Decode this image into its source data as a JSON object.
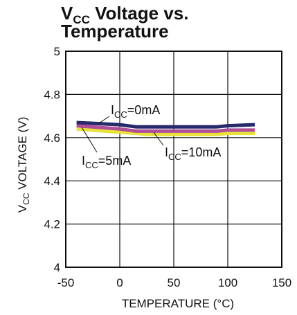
{
  "chart_data": {
    "type": "line",
    "title": {
      "main_prefix": "V",
      "main_sub": "CC",
      "main_suffix": " Voltage vs.",
      "line2": "Temperature"
    },
    "xlabel": "TEMPERATURE (°C)",
    "ylabel": {
      "prefix": "V",
      "sub": "CC",
      "suffix": " VOLTAGE (V)"
    },
    "xlim": [
      -50,
      150
    ],
    "ylim": [
      4,
      5
    ],
    "xticks": [
      -50,
      0,
      50,
      100,
      150
    ],
    "xtick_labels": [
      "-50",
      "0",
      "50",
      "100",
      "150"
    ],
    "yticks": [
      4,
      4.2,
      4.4,
      4.6,
      4.8,
      5
    ],
    "ytick_labels": [
      "4",
      "4.2",
      "4.4",
      "4.6",
      "4.8",
      "5"
    ],
    "grid": true,
    "series": [
      {
        "name": "ICC=0mA",
        "color": "#262a6b",
        "x": [
          -40,
          0,
          15,
          25,
          50,
          90,
          100,
          125
        ],
        "y": [
          4.67,
          4.66,
          4.65,
          4.65,
          4.65,
          4.65,
          4.655,
          4.66
        ]
      },
      {
        "name": "ICC=5mA",
        "color": "#b04e9a",
        "x": [
          -40,
          0,
          15,
          25,
          50,
          90,
          100,
          125
        ],
        "y": [
          4.655,
          4.64,
          4.63,
          4.63,
          4.63,
          4.63,
          4.635,
          4.635
        ]
      },
      {
        "name": "ICC=10mA",
        "color": "#e8e23a",
        "x": [
          -40,
          0,
          15,
          25,
          50,
          90,
          100,
          125
        ],
        "y": [
          4.64,
          4.625,
          4.62,
          4.615,
          4.615,
          4.615,
          4.62,
          4.62
        ]
      }
    ],
    "annotations": [
      {
        "prefix": "I",
        "sub": "CC",
        "suffix": "=0mA",
        "series": 0
      },
      {
        "prefix": "I",
        "sub": "CC",
        "suffix": "=5mA",
        "series": 1
      },
      {
        "prefix": "I",
        "sub": "CC",
        "suffix": "=10mA",
        "series": 2
      }
    ]
  }
}
